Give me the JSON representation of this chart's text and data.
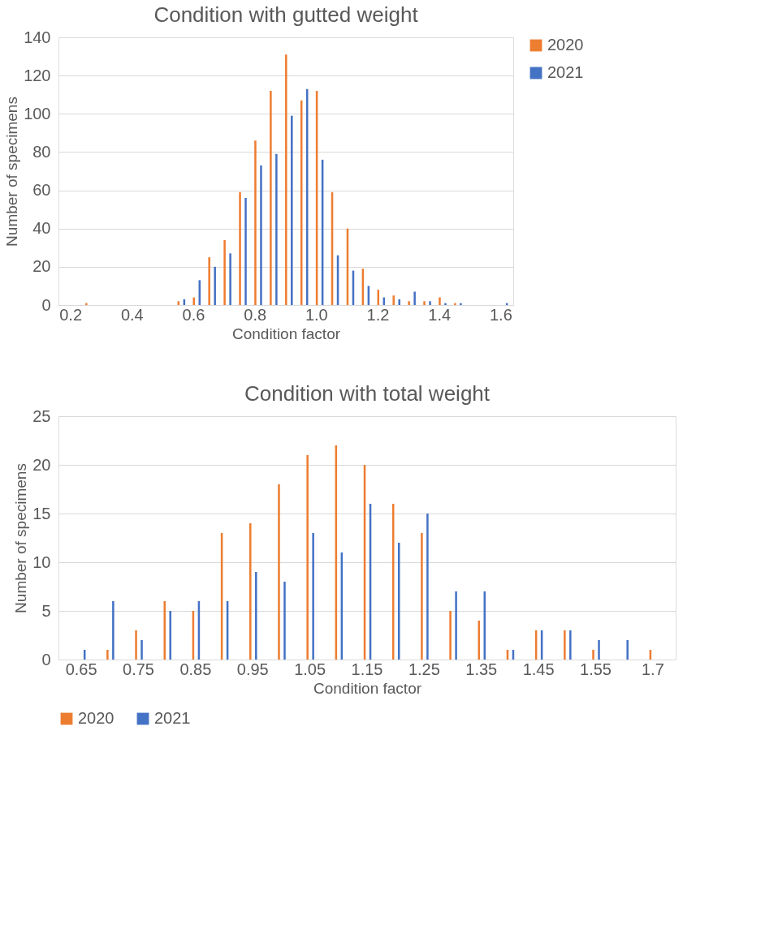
{
  "chart_data": [
    {
      "type": "bar",
      "title": "Condition with gutted weight",
      "xlabel": "Condition factor",
      "ylabel": "Number of specimens",
      "categories": [
        "0.2",
        null,
        null,
        null,
        "0.4",
        null,
        null,
        null,
        "0.6",
        null,
        null,
        null,
        "0.8",
        null,
        null,
        null,
        "1.0",
        null,
        null,
        null,
        "1.2",
        null,
        null,
        null,
        "1.4",
        null,
        null,
        null,
        "1.6"
      ],
      "series": [
        {
          "name": "2020",
          "color": "#ed7d31",
          "values": [
            0,
            1,
            0,
            0,
            0,
            0,
            0,
            2,
            4,
            25,
            34,
            59,
            86,
            112,
            131,
            107,
            112,
            59,
            40,
            19,
            8,
            5,
            2,
            2,
            4,
            1,
            0,
            0,
            0
          ]
        },
        {
          "name": "2021",
          "color": "#4472c4",
          "values": [
            0,
            0,
            0,
            0,
            0,
            0,
            0,
            3,
            13,
            20,
            27,
            56,
            73,
            79,
            99,
            113,
            76,
            26,
            18,
            10,
            4,
            3,
            7,
            2,
            1,
            1,
            0,
            0,
            1
          ]
        }
      ],
      "ylim": [
        0,
        140
      ],
      "yticks": [
        0,
        20,
        40,
        60,
        80,
        100,
        120,
        140
      ],
      "grid": "y",
      "legend": "right"
    },
    {
      "type": "bar",
      "title": "Condition with total weight",
      "xlabel": "Condition factor",
      "ylabel": "Number of specimens",
      "categories": [
        "0.65",
        null,
        "0.75",
        null,
        "0.85",
        null,
        "0.95",
        null,
        "1.05",
        null,
        "1.15",
        null,
        "1.25",
        null,
        "1.35",
        null,
        "1.45",
        null,
        "1.55",
        null,
        "1.7"
      ],
      "series": [
        {
          "name": "2020",
          "color": "#ed7d31",
          "values": [
            0,
            1,
            3,
            6,
            5,
            13,
            14,
            18,
            21,
            22,
            20,
            16,
            13,
            5,
            4,
            1,
            3,
            3,
            1,
            0,
            1
          ]
        },
        {
          "name": "2021",
          "color": "#4472c4",
          "values": [
            1,
            6,
            2,
            5,
            6,
            6,
            9,
            8,
            13,
            11,
            16,
            12,
            15,
            7,
            7,
            1,
            3,
            3,
            2,
            2,
            0
          ]
        }
      ],
      "ylim": [
        0,
        25
      ],
      "yticks": [
        0,
        5,
        10,
        15,
        20,
        25
      ],
      "grid": "y",
      "legend": "bottom"
    }
  ]
}
